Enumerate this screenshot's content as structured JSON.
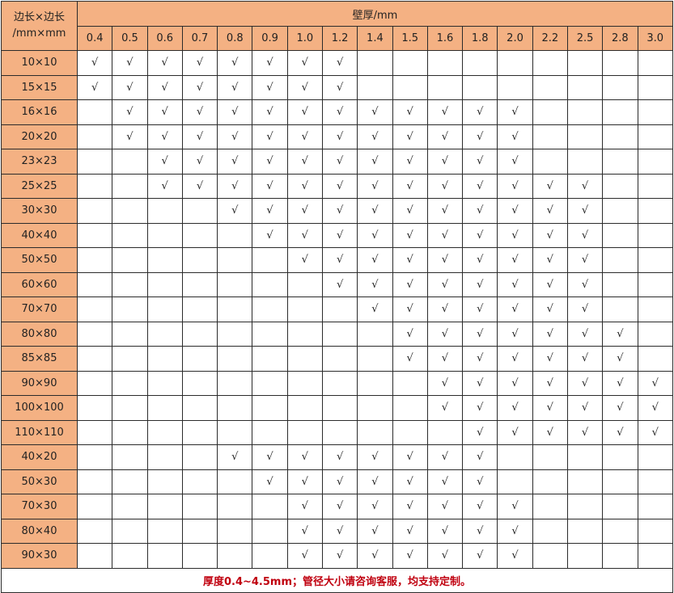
{
  "header": {
    "corner_line1": "边长×边长",
    "corner_line2": "/mm×mm",
    "thickness_title": "壁厚/mm",
    "thickness_columns": [
      "0.4",
      "0.5",
      "0.6",
      "0.7",
      "0.8",
      "0.9",
      "1.0",
      "1.2",
      "1.4",
      "1.5",
      "1.6",
      "1.8",
      "2.0",
      "2.2",
      "2.5",
      "2.8",
      "3.0"
    ]
  },
  "check_mark": "√",
  "rows": [
    {
      "size": "10×10",
      "from": "0.4",
      "to": "1.2"
    },
    {
      "size": "15×15",
      "from": "0.4",
      "to": "1.2"
    },
    {
      "size": "16×16",
      "from": "0.5",
      "to": "2.0"
    },
    {
      "size": "20×20",
      "from": "0.5",
      "to": "2.0"
    },
    {
      "size": "23×23",
      "from": "0.6",
      "to": "2.0"
    },
    {
      "size": "25×25",
      "from": "0.6",
      "to": "2.5"
    },
    {
      "size": "30×30",
      "from": "0.8",
      "to": "2.5"
    },
    {
      "size": "40×40",
      "from": "0.9",
      "to": "2.5"
    },
    {
      "size": "50×50",
      "from": "1.0",
      "to": "2.5"
    },
    {
      "size": "60×60",
      "from": "1.2",
      "to": "2.5"
    },
    {
      "size": "70×70",
      "from": "1.4",
      "to": "2.5"
    },
    {
      "size": "80×80",
      "from": "1.5",
      "to": "2.8"
    },
    {
      "size": "85×85",
      "from": "1.5",
      "to": "2.8"
    },
    {
      "size": "90×90",
      "from": "1.6",
      "to": "3.0"
    },
    {
      "size": "100×100",
      "from": "1.6",
      "to": "3.0"
    },
    {
      "size": "110×110",
      "from": "1.8",
      "to": "3.0"
    },
    {
      "size": "40×20",
      "from": "0.8",
      "to": "1.8"
    },
    {
      "size": "50×30",
      "from": "0.9",
      "to": "1.8"
    },
    {
      "size": "70×30",
      "from": "1.0",
      "to": "2.0"
    },
    {
      "size": "80×40",
      "from": "1.0",
      "to": "2.0"
    },
    {
      "size": "90×30",
      "from": "1.0",
      "to": "2.0"
    }
  ],
  "footer": "厚度0.4~4.5mm；管径大小请咨询客服，均支持定制。",
  "colors": {
    "header_bg": "#F4B183",
    "footer_text": "#C0000F"
  }
}
